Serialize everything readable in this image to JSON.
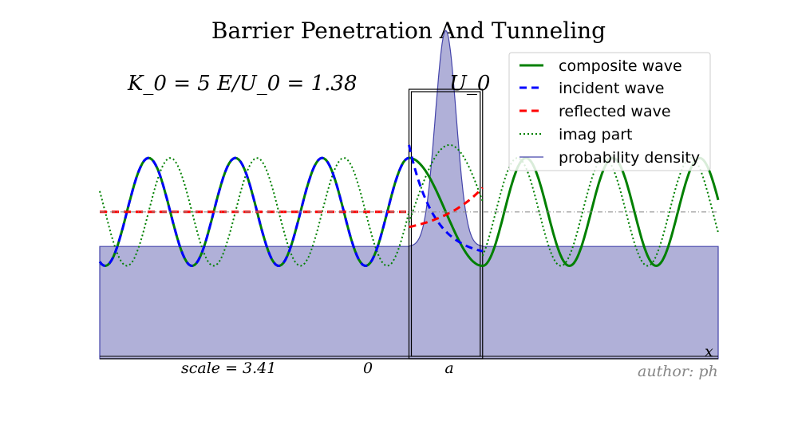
{
  "chart_data": {
    "type": "line",
    "title": "Barrier Penetration And Tunneling",
    "params": {
      "K0": 5,
      "E_over_U0": 1.38,
      "scale": 3.41
    },
    "annotations": {
      "params_label": "K_0 = 5   E/U_0 = 1.38",
      "barrier_label": "U_0",
      "scale_label": "scale = 3.41",
      "author_label": "author: ph",
      "x_axis_label": "x",
      "tick_zero": "0",
      "tick_a": "a"
    },
    "xlim": [
      -4.2,
      4.2
    ],
    "ylim": [
      -3.4,
      3.8
    ],
    "barrier": {
      "x_start": 0,
      "x_end": 1,
      "height": 1.38
    },
    "series": [
      {
        "name": "composite wave",
        "color": "#008000",
        "style": "solid"
      },
      {
        "name": "incident wave",
        "color": "#0000ff",
        "style": "dashed"
      },
      {
        "name": "reflected wave",
        "color": "#ff0000",
        "style": "dashed"
      },
      {
        "name": "imag part",
        "color": "#008000",
        "style": "dotted"
      },
      {
        "name": "probability density",
        "color": "#4444aa",
        "fill": "#b0b0d8",
        "style": "filled"
      }
    ],
    "legend_position": "top-right",
    "grid": false
  }
}
